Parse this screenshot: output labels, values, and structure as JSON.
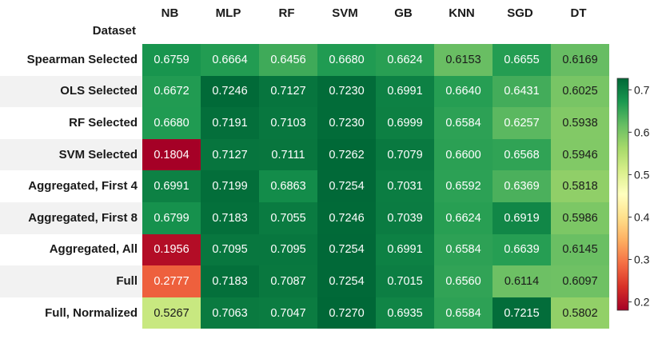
{
  "chart_data": {
    "type": "heatmap",
    "index_name": "Dataset",
    "columns": [
      "NB",
      "MLP",
      "RF",
      "SVM",
      "GB",
      "KNN",
      "SGD",
      "DT"
    ],
    "rows": [
      "Spearman Selected",
      "OLS Selected",
      "RF Selected",
      "SVM Selected",
      "Aggregated, First 4",
      "Aggregated, First 8",
      "Aggregated, All",
      "Full",
      "Full, Normalized"
    ],
    "values": [
      [
        0.6759,
        0.6664,
        0.6456,
        0.668,
        0.6624,
        0.6153,
        0.6655,
        0.6169
      ],
      [
        0.6672,
        0.7246,
        0.7127,
        0.723,
        0.6991,
        0.664,
        0.6431,
        0.6025
      ],
      [
        0.668,
        0.7191,
        0.7103,
        0.723,
        0.6999,
        0.6584,
        0.6257,
        0.5938
      ],
      [
        0.1804,
        0.7127,
        0.7111,
        0.7262,
        0.7079,
        0.66,
        0.6568,
        0.5946
      ],
      [
        0.6991,
        0.7199,
        0.6863,
        0.7254,
        0.7031,
        0.6592,
        0.6369,
        0.5818
      ],
      [
        0.6799,
        0.7183,
        0.7055,
        0.7246,
        0.7039,
        0.6624,
        0.6919,
        0.5986
      ],
      [
        0.1956,
        0.7095,
        0.7095,
        0.7254,
        0.6991,
        0.6584,
        0.6639,
        0.6145
      ],
      [
        0.2777,
        0.7183,
        0.7087,
        0.7254,
        0.7015,
        0.656,
        0.6114,
        0.6097
      ],
      [
        0.5267,
        0.7063,
        0.7047,
        0.727,
        0.6935,
        0.6584,
        0.7215,
        0.5802
      ]
    ],
    "colormap": "RdYlGn",
    "vmin": 0.1804,
    "vmax": 0.727,
    "colorbar_ticks": [
      "0.7",
      "0.6",
      "0.5",
      "0.4",
      "0.3",
      "0.2"
    ],
    "colorbar_tick_values": [
      0.7,
      0.6,
      0.5,
      0.4,
      0.3,
      0.2
    ],
    "legend_position": "right"
  }
}
